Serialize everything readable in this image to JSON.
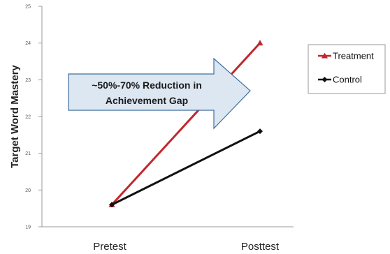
{
  "chart_data": {
    "type": "line",
    "categories": [
      "Pretest",
      "Posttest"
    ],
    "series": [
      {
        "name": "Treatment",
        "values": [
          19.6,
          24.0
        ],
        "color": "#c0282d",
        "marker": "triangle"
      },
      {
        "name": "Control",
        "values": [
          19.6,
          21.6
        ],
        "color": "#111111",
        "marker": "diamond"
      }
    ],
    "ylabel": "Target Word Mastery",
    "ylim": [
      19,
      25
    ],
    "yticks": [
      "19",
      "20",
      "21",
      "22",
      "23",
      "24",
      "25"
    ],
    "grid": false,
    "legend_position": "right",
    "annotation": {
      "line1": "~50%-70% Reduction in",
      "line2": "Achievement Gap",
      "fill": "#dde7f1",
      "stroke": "#3f6f9f"
    }
  }
}
